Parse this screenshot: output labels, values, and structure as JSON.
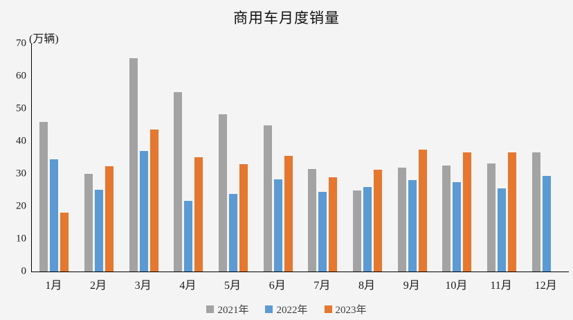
{
  "chart_data": {
    "type": "bar",
    "title": "商用车月度销量",
    "ylabel": "(万辆)",
    "xlabel": "",
    "categories": [
      "1月",
      "2月",
      "3月",
      "4月",
      "5月",
      "6月",
      "7月",
      "8月",
      "9月",
      "10月",
      "11月",
      "12月"
    ],
    "series": [
      {
        "name": "2021年",
        "color": "#A3A3A3",
        "values": [
          45.9,
          29.9,
          65.5,
          55.1,
          48.3,
          44.8,
          31.5,
          24.8,
          31.9,
          32.6,
          33.2,
          36.5
        ]
      },
      {
        "name": "2022年",
        "color": "#5B9BD5",
        "values": [
          34.5,
          25.1,
          37.1,
          21.8,
          23.9,
          28.2,
          24.5,
          25.9,
          28.0,
          27.4,
          25.5,
          29.3
        ]
      },
      {
        "name": "2023年",
        "color": "#E8772E",
        "values": [
          18.1,
          32.4,
          43.7,
          35.1,
          33.0,
          35.6,
          28.9,
          31.2,
          37.4,
          36.7,
          36.6,
          null
        ]
      }
    ],
    "ylim": [
      0,
      70
    ],
    "ytick_step": 10,
    "grid": false,
    "legend_position": "bottom",
    "background_color": "#f4f4f4"
  }
}
